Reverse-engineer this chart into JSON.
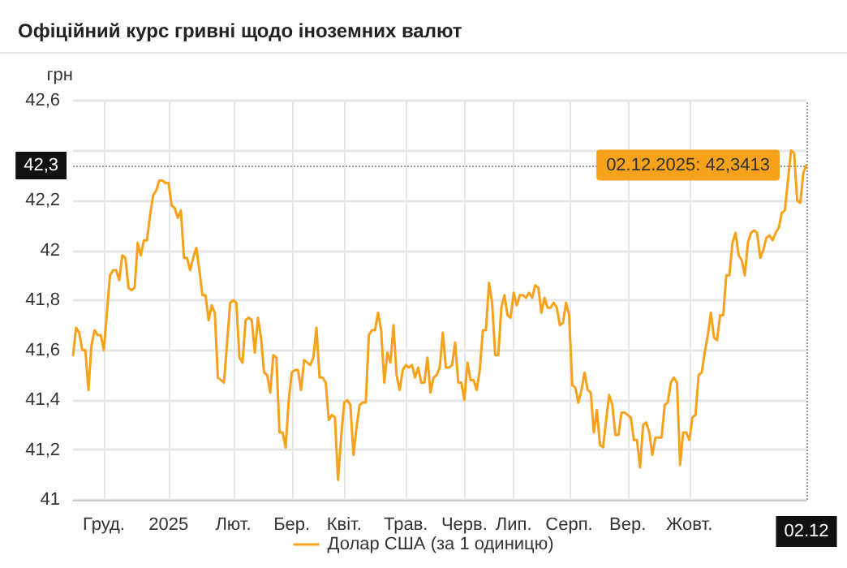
{
  "chart_data": {
    "type": "line",
    "title": "Офіційний курс гривні щодо іноземних валют",
    "ylabel": "грн",
    "categories": [
      null,
      null,
      null,
      null,
      null,
      null,
      null,
      null,
      null,
      null,
      "Груд.",
      null,
      null,
      null,
      null,
      null,
      null,
      null,
      null,
      null,
      null,
      null,
      null,
      null,
      null,
      null,
      null,
      null,
      null,
      null,
      null,
      "2025",
      null,
      null,
      null,
      null,
      null,
      null,
      null,
      null,
      null,
      null,
      null,
      null,
      null,
      null,
      null,
      null,
      null,
      null,
      null,
      null,
      "Лют.",
      null,
      null,
      null,
      null,
      null,
      null,
      null,
      null,
      null,
      null,
      null,
      null,
      null,
      null,
      null,
      null,
      null,
      null,
      "Бер.",
      null,
      null,
      null,
      null,
      null,
      null,
      null,
      null,
      null,
      null,
      null,
      null,
      null,
      null,
      null,
      null,
      "Квіт.",
      null,
      null,
      null,
      null,
      null,
      null,
      null,
      null,
      null,
      null,
      null,
      null,
      null,
      null,
      null,
      null,
      null,
      null,
      null,
      "Трав.",
      null,
      null,
      null,
      null,
      null,
      null,
      null,
      null,
      null,
      null,
      null,
      null,
      null,
      null,
      null,
      null,
      null,
      null,
      "Черв.",
      null,
      null,
      null,
      null,
      null,
      null,
      null,
      null,
      null,
      null,
      null,
      null,
      null,
      null,
      null,
      "Лип.",
      null,
      null,
      null,
      null,
      null,
      null,
      null,
      null,
      null,
      null,
      null,
      null,
      null,
      null,
      null,
      null,
      null,
      "Серп.",
      null,
      null,
      null,
      null,
      null,
      null,
      null,
      null,
      null,
      null,
      null,
      null,
      null,
      null,
      null,
      null,
      null,
      null,
      "Вер.",
      null,
      null,
      null,
      null,
      null,
      null,
      null,
      null,
      null,
      null,
      null,
      null,
      null,
      null,
      null,
      null,
      null,
      null,
      null,
      "Жовт.",
      null,
      null,
      null,
      null,
      null,
      null,
      null,
      null,
      null,
      null,
      null,
      null,
      null,
      null,
      null,
      null,
      null,
      null,
      null,
      null,
      null,
      null,
      null,
      null,
      null,
      null,
      null,
      null,
      null,
      null,
      null,
      null,
      null,
      null,
      null,
      null,
      null,
      "02.12"
    ],
    "ylim": [
      41,
      42.6
    ],
    "yticks": [
      41,
      {
        "value": 41.2,
        "label": "41,2"
      },
      {
        "value": 41.4,
        "label": "41,4"
      },
      {
        "value": 41.6,
        "label": "41,6"
      },
      {
        "value": 41.8,
        "label": "41,8"
      },
      42,
      {
        "value": 42.2,
        "label": "42,2"
      },
      {
        "value": 42.4,
        "label": null
      },
      {
        "value": 42.6,
        "label": "42,6"
      }
    ],
    "grid": true,
    "legend": "bottom",
    "marker": "none",
    "line_style": "solid",
    "series": [
      {
        "name": "Долар США (за 1 одиницю)",
        "color": "#f7a21b",
        "values": [
          41.58,
          41.69,
          41.67,
          41.6,
          41.6,
          41.44,
          41.62,
          41.68,
          41.66,
          41.66,
          41.6,
          41.75,
          41.9,
          41.92,
          41.92,
          41.88,
          41.98,
          41.97,
          41.85,
          41.84,
          41.85,
          42.03,
          41.98,
          42.04,
          42.04,
          42.14,
          42.22,
          42.24,
          42.28,
          42.28,
          42.27,
          42.27,
          42.18,
          42.17,
          42.13,
          42.16,
          41.97,
          41.97,
          41.92,
          41.97,
          42.01,
          41.92,
          41.82,
          41.82,
          41.72,
          41.78,
          41.75,
          41.49,
          41.48,
          41.47,
          41.63,
          41.79,
          41.8,
          41.79,
          41.57,
          41.55,
          41.72,
          41.73,
          41.72,
          41.59,
          41.73,
          41.65,
          41.51,
          41.5,
          41.43,
          41.58,
          41.57,
          41.27,
          41.27,
          41.21,
          41.4,
          41.51,
          41.52,
          41.52,
          41.44,
          41.56,
          41.55,
          41.54,
          41.57,
          41.69,
          41.49,
          41.49,
          41.47,
          41.32,
          41.34,
          41.33,
          41.08,
          41.25,
          41.39,
          41.4,
          41.38,
          41.18,
          41.29,
          41.38,
          41.39,
          41.39,
          41.66,
          41.68,
          41.68,
          41.75,
          41.68,
          41.47,
          41.59,
          41.55,
          41.7,
          41.5,
          41.44,
          41.52,
          41.54,
          41.53,
          41.54,
          41.49,
          41.53,
          41.47,
          41.47,
          41.57,
          41.43,
          41.49,
          41.5,
          41.53,
          41.67,
          41.53,
          41.53,
          41.54,
          41.63,
          41.47,
          41.47,
          41.4,
          41.55,
          41.48,
          41.48,
          41.44,
          41.52,
          41.68,
          41.68,
          41.87,
          41.79,
          41.58,
          41.58,
          41.77,
          41.82,
          41.74,
          41.73,
          41.83,
          41.78,
          41.82,
          41.82,
          41.81,
          41.83,
          41.81,
          41.86,
          41.85,
          41.75,
          41.81,
          41.77,
          41.77,
          41.79,
          41.77,
          41.7,
          41.71,
          41.79,
          41.74,
          41.46,
          41.45,
          41.39,
          41.44,
          41.51,
          41.44,
          41.43,
          41.27,
          41.36,
          41.22,
          41.21,
          41.32,
          41.42,
          41.38,
          41.26,
          41.26,
          41.35,
          41.35,
          41.34,
          41.33,
          41.24,
          41.24,
          41.13,
          41.3,
          41.31,
          41.27,
          41.18,
          41.25,
          41.25,
          41.25,
          41.38,
          41.39,
          41.47,
          41.49,
          41.47,
          41.14,
          41.27,
          41.27,
          41.24,
          41.33,
          41.34,
          41.5,
          41.51,
          41.59,
          41.66,
          41.75,
          41.65,
          41.64,
          41.74,
          41.74,
          41.9,
          41.9,
          42.03,
          42.07,
          41.98,
          41.96,
          41.9,
          42.03,
          42.07,
          42.08,
          42.07,
          41.97,
          42.0,
          42.05,
          42.06,
          42.04,
          42.07,
          42.09,
          42.15,
          42.16,
          42.28,
          42.4,
          42.39,
          42.2,
          42.19,
          42.31,
          42.3413
        ]
      }
    ],
    "ref_lines": [
      {
        "axis": "y",
        "value": 42.3413,
        "label": "42,3",
        "color": "#999999",
        "line_style": "dotted"
      },
      {
        "axis": "x",
        "value": "02.12",
        "color": "#999999",
        "line_style": "dotted"
      }
    ],
    "annotations": [
      {
        "text": "02.12.2025: 42,3413",
        "x": "02.12",
        "y": 42.3413
      }
    ]
  }
}
